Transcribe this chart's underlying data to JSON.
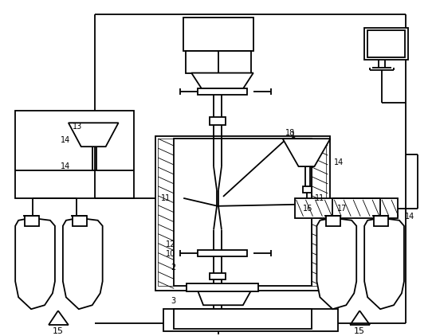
{
  "bg_color": "#ffffff",
  "lw": 1.3
}
